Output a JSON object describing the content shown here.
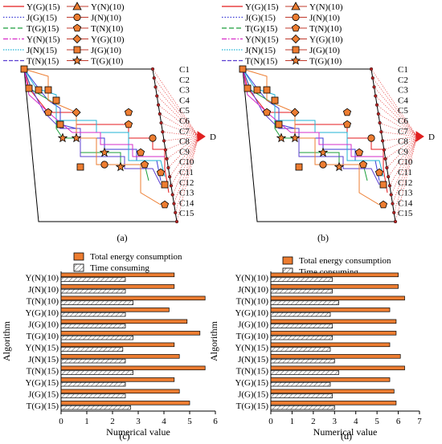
{
  "panel_labels": [
    "(a)",
    "(b)",
    "(c)",
    "(d)"
  ],
  "legend_lines": [
    {
      "left": "Y(G)(15)",
      "right": "Y(N)(10)",
      "left_color": "#e41a1c",
      "right_marker": "triangle"
    },
    {
      "left": "J(G)(15)",
      "right": "J(N)(10)",
      "left_color": "#3b3bd6",
      "right_marker": "circle"
    },
    {
      "left": "T(G)(15)",
      "right": "T(N)(10)",
      "left_color": "#1a9e3a",
      "right_marker": "pentagon"
    },
    {
      "left": "Y(N)(15)",
      "right": "Y(G)(10)",
      "left_color": "#d62cc9",
      "right_marker": "diamond"
    },
    {
      "left": "J(N)(15)",
      "right": "J(G)(10)",
      "left_color": "#1fb3d6",
      "right_marker": "square"
    },
    {
      "left": "T(N)(15)",
      "right": "T(G)(10)",
      "left_color": "#5b3fd1",
      "right_marker": "star"
    }
  ],
  "route_labels": [
    "C1",
    "C2",
    "C3",
    "C4",
    "C5",
    "C6",
    "C7",
    "C8",
    "C9",
    "C10",
    "C11",
    "C12",
    "C13",
    "C14",
    "C15"
  ],
  "depot_label": "D",
  "colors": {
    "accent": "#e02020",
    "orange": "#ed7d31",
    "outline": "#000000"
  },
  "chart_data": [
    {
      "type": "bar",
      "panel": "(c)",
      "orientation": "horizontal",
      "categories": [
        "Y(N)(10)",
        "J(N)(10)",
        "T(N)(10)",
        "Y(G)(10)",
        "J(G)(10)",
        "T(G)(10)",
        "Y(N)(15)",
        "J(N)(15)",
        "T(N)(15)",
        "Y(G)(15)",
        "J(G)(15)",
        "T(G)(15)"
      ],
      "series": [
        {
          "name": "Total energy consumption",
          "color": "#ed7d31",
          "values": [
            4.4,
            4.4,
            5.6,
            4.2,
            4.9,
            5.4,
            4.4,
            4.6,
            5.6,
            4.4,
            4.6,
            5.0
          ]
        },
        {
          "name": "Time consuming",
          "color": "#ffffff",
          "values": [
            2.5,
            2.5,
            2.8,
            2.5,
            2.5,
            2.8,
            2.4,
            2.5,
            2.8,
            2.5,
            2.5,
            2.7
          ]
        }
      ],
      "xlabel": "Numerical value",
      "ylabel": "Algorithm",
      "xlim": [
        0,
        6
      ],
      "xticks": [
        "0",
        "1",
        "2",
        "3",
        "4",
        "5",
        "6"
      ],
      "legend": "top"
    },
    {
      "type": "bar",
      "panel": "(d)",
      "orientation": "horizontal",
      "categories": [
        "Y(N)(10)",
        "J(N)(10)",
        "T(N)(10)",
        "Y(G)(10)",
        "J(G)(10)",
        "T(G)(10)",
        "Y(N)(15)",
        "J(N)(15)",
        "T(N)(15)",
        "Y(G)(15)",
        "J(G)(15)",
        "T(G)(15)"
      ],
      "series": [
        {
          "name": "Total energy consumption",
          "color": "#ed7d31",
          "values": [
            6.0,
            6.0,
            6.3,
            5.6,
            5.9,
            5.9,
            5.6,
            6.1,
            6.3,
            5.6,
            5.8,
            5.9
          ]
        },
        {
          "name": "Time consuming",
          "color": "#ffffff",
          "values": [
            2.9,
            2.9,
            3.2,
            2.8,
            2.9,
            2.9,
            2.8,
            3.0,
            3.2,
            2.8,
            2.9,
            3.0
          ]
        }
      ],
      "xlabel": "Numerical value",
      "ylabel": "Algorithm",
      "xlim": [
        0,
        7
      ],
      "xticks": [
        "0",
        "1",
        "2",
        "3",
        "4",
        "5",
        "6",
        "7"
      ],
      "legend": "top"
    }
  ]
}
